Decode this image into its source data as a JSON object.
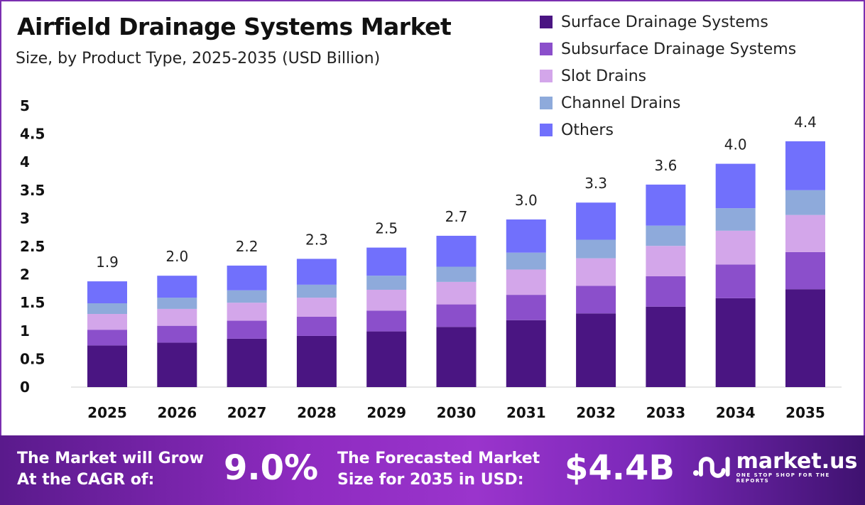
{
  "chart_data": {
    "type": "bar",
    "stacked": true,
    "title": "Airfield Drainage Systems Market",
    "subtitle": "Size, by Product Type, 2025-2035 (USD Billion)",
    "categories": [
      "2025",
      "2026",
      "2027",
      "2028",
      "2029",
      "2030",
      "2031",
      "2032",
      "2033",
      "2034",
      "2035"
    ],
    "ylim": [
      0,
      5
    ],
    "yticks": [
      "0",
      "0.5",
      "1",
      "1.5",
      "2",
      "2.5",
      "3",
      "3.5",
      "4",
      "4.5",
      "5"
    ],
    "grid": false,
    "legend_position": "top-right",
    "totals_labels": [
      "1.9",
      "2.0",
      "2.2",
      "2.3",
      "2.5",
      "2.7",
      "3.0",
      "3.3",
      "3.6",
      "4.0",
      "4.4"
    ],
    "series": [
      {
        "name": "Surface Drainage Systems",
        "color": "#4a1582",
        "values": [
          0.74,
          0.79,
          0.86,
          0.91,
          0.99,
          1.07,
          1.19,
          1.31,
          1.43,
          1.58,
          1.74
        ]
      },
      {
        "name": "Subsurface Drainage Systems",
        "color": "#8b4fcb",
        "values": [
          0.28,
          0.3,
          0.32,
          0.34,
          0.37,
          0.4,
          0.45,
          0.49,
          0.54,
          0.6,
          0.66
        ]
      },
      {
        "name": "Slot Drains",
        "color": "#d3a6ea",
        "values": [
          0.28,
          0.3,
          0.32,
          0.34,
          0.37,
          0.4,
          0.45,
          0.49,
          0.54,
          0.6,
          0.66
        ]
      },
      {
        "name": "Channel Drains",
        "color": "#8eaadb",
        "values": [
          0.19,
          0.2,
          0.22,
          0.23,
          0.25,
          0.27,
          0.3,
          0.33,
          0.36,
          0.4,
          0.44
        ]
      },
      {
        "name": "Others",
        "color": "#7170fc",
        "values": [
          0.39,
          0.39,
          0.44,
          0.46,
          0.5,
          0.55,
          0.59,
          0.66,
          0.73,
          0.79,
          0.87
        ]
      }
    ]
  },
  "banner": {
    "cagr_label_1": "The Market will Grow",
    "cagr_label_2": "At the CAGR of:",
    "cagr_value": "9.0%",
    "forecast_label_1": "The Forecasted Market",
    "forecast_label_2": "Size for 2035 in USD:",
    "forecast_value": "$4.4B",
    "logo_name": "market.us",
    "logo_tagline": "ONE STOP SHOP FOR THE REPORTS"
  }
}
